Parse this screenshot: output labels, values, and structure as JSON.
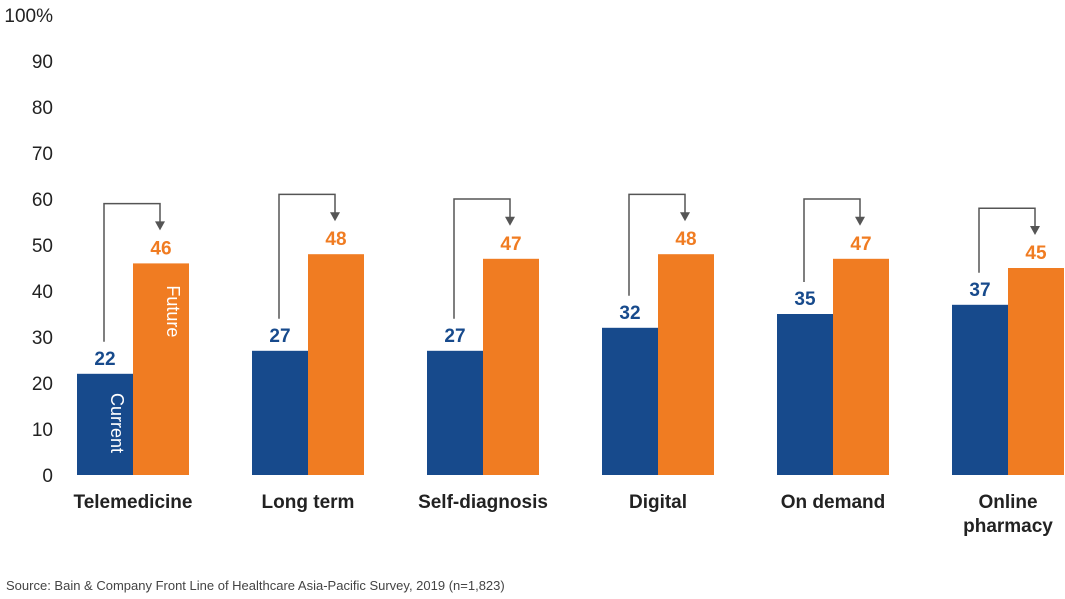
{
  "chart_data": {
    "type": "bar",
    "categories": [
      [
        "Telemedicine"
      ],
      [
        "Long term"
      ],
      [
        "Self-diagnosis"
      ],
      [
        "Digital"
      ],
      [
        "On demand"
      ],
      [
        "Online",
        "pharmacy"
      ]
    ],
    "series": [
      {
        "name": "Current",
        "values": [
          22,
          27,
          27,
          32,
          35,
          37
        ],
        "color": "#174a8c"
      },
      {
        "name": "Future",
        "values": [
          46,
          48,
          47,
          48,
          47,
          45
        ],
        "color": "#f07c22"
      }
    ],
    "ylim": [
      0,
      100
    ],
    "yticks": [
      "0",
      "10",
      "20",
      "30",
      "40",
      "50",
      "60",
      "70",
      "80",
      "90",
      "100%"
    ],
    "grid": false,
    "legend": "inside first category bars",
    "annotations": "bracket arrows from each current bar to the corresponding future bar",
    "arrow_color": "#555555"
  },
  "footer": {
    "source": "Source: Bain & Company Front Line of Healthcare Asia-Pacific Survey, 2019 (n=1,823)"
  }
}
